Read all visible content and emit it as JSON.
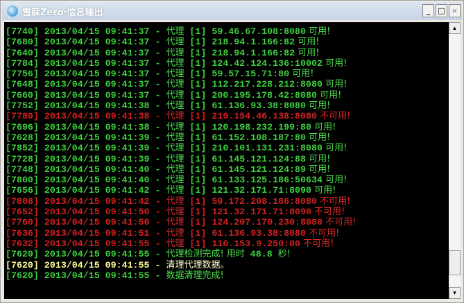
{
  "window": {
    "title": "雪寐Zero·信息输出",
    "minimize": "_",
    "maximize": "□",
    "close": "×"
  },
  "colors": {
    "ok": "#3ed03e",
    "fail": "#d42020",
    "info": "#ffff99",
    "background": "#000000"
  },
  "scrollbar": {
    "up": "▲",
    "down": "▼",
    "position": 1.0
  },
  "rows": [
    {
      "type": "ok",
      "pid": "[7740]",
      "datetime": "2013/04/15 09:41:37",
      "sep": " - ",
      "label": "代理",
      "tag": " [1] ",
      "addr": "59.46.67.108:8080",
      "status": " 可用!"
    },
    {
      "type": "ok",
      "pid": "[7680]",
      "datetime": "2013/04/15 09:41:37",
      "sep": " - ",
      "label": "代理",
      "tag": " [1] ",
      "addr": "218.94.1.166:82",
      "status": " 可用!"
    },
    {
      "type": "ok",
      "pid": "[7640]",
      "datetime": "2013/04/15 09:41:37",
      "sep": " - ",
      "label": "代理",
      "tag": " [1] ",
      "addr": "218.94.1.166:82",
      "status": " 可用!"
    },
    {
      "type": "ok",
      "pid": "[7784]",
      "datetime": "2013/04/15 09:41:37",
      "sep": " - ",
      "label": "代理",
      "tag": " [1] ",
      "addr": "124.42.124.136:10002",
      "status": " 可用!"
    },
    {
      "type": "ok",
      "pid": "[7756]",
      "datetime": "2013/04/15 09:41:37",
      "sep": " - ",
      "label": "代理",
      "tag": " [1] ",
      "addr": "59.57.15.71:80",
      "status": " 可用!"
    },
    {
      "type": "ok",
      "pid": "[7648]",
      "datetime": "2013/04/15 09:41:37",
      "sep": " - ",
      "label": "代理",
      "tag": " [1] ",
      "addr": "112.217.228.212:8080",
      "status": " 可用!"
    },
    {
      "type": "ok",
      "pid": "[7660]",
      "datetime": "2013/04/15 09:41:37",
      "sep": " - ",
      "label": "代理",
      "tag": " [1] ",
      "addr": "200.195.178.42:8080",
      "status": " 可用!"
    },
    {
      "type": "ok",
      "pid": "[7752]",
      "datetime": "2013/04/15 09:41:38",
      "sep": " - ",
      "label": "代理",
      "tag": " [1] ",
      "addr": "61.136.93.38:8080",
      "status": " 可用!"
    },
    {
      "type": "fail",
      "pid": "[7780]",
      "datetime": "2013/04/15 09:41:38",
      "sep": " - ",
      "label": "代理",
      "tag": " [1] ",
      "addr": "219.154.46.138:8080",
      "status": " 不可用!"
    },
    {
      "type": "ok",
      "pid": "[7696]",
      "datetime": "2013/04/15 09:41:38",
      "sep": " - ",
      "label": "代理",
      "tag": " [1] ",
      "addr": "120.198.232.199:80",
      "status": " 可用!"
    },
    {
      "type": "ok",
      "pid": "[7628]",
      "datetime": "2013/04/15 09:41:39",
      "sep": " - ",
      "label": "代理",
      "tag": " [1] ",
      "addr": "61.152.108.187:80",
      "status": " 可用!"
    },
    {
      "type": "ok",
      "pid": "[7852]",
      "datetime": "2013/04/15 09:41:39",
      "sep": " - ",
      "label": "代理",
      "tag": " [1] ",
      "addr": "210.101.131.231:8080",
      "status": " 可用!"
    },
    {
      "type": "ok",
      "pid": "[7728]",
      "datetime": "2013/04/15 09:41:39",
      "sep": " - ",
      "label": "代理",
      "tag": " [1] ",
      "addr": "61.145.121.124:88",
      "status": " 可用!"
    },
    {
      "type": "ok",
      "pid": "[7748]",
      "datetime": "2013/04/15 09:41:40",
      "sep": " - ",
      "label": "代理",
      "tag": " [1] ",
      "addr": "61.145.121.124:89",
      "status": " 可用!"
    },
    {
      "type": "ok",
      "pid": "[7800]",
      "datetime": "2013/04/15 09:41:40",
      "sep": " - ",
      "label": "代理",
      "tag": " [1] ",
      "addr": "61.133.125.186:50634",
      "status": " 可用!"
    },
    {
      "type": "ok",
      "pid": "[7656]",
      "datetime": "2013/04/15 09:41:42",
      "sep": " - ",
      "label": "代理",
      "tag": " [1] ",
      "addr": "121.32.171.71:8090",
      "status": " 可用!"
    },
    {
      "type": "fail",
      "pid": "[7808]",
      "datetime": "2013/04/15 09:41:42",
      "sep": " - ",
      "label": "代理",
      "tag": " [1] ",
      "addr": "59.172.208.186:8080",
      "status": " 不可用!"
    },
    {
      "type": "fail",
      "pid": "[7652]",
      "datetime": "2013/04/15 09:41:50",
      "sep": " - ",
      "label": "代理",
      "tag": " [1] ",
      "addr": "121.32.171.71:8090",
      "status": " 不可用!"
    },
    {
      "type": "fail",
      "pid": "[7760]",
      "datetime": "2013/04/15 09:41:50",
      "sep": " - ",
      "label": "代理",
      "tag": " [1] ",
      "addr": "124.207.170.230:8080",
      "status": " 不可用!"
    },
    {
      "type": "fail",
      "pid": "[7636]",
      "datetime": "2013/04/15 09:41:51",
      "sep": " - ",
      "label": "代理",
      "tag": " [1] ",
      "addr": "61.136.93.38:8080",
      "status": " 不可用!"
    },
    {
      "type": "fail",
      "pid": "[7632]",
      "datetime": "2013/04/15 09:41:55",
      "sep": " - ",
      "label": "代理",
      "tag": " [1] ",
      "addr": "110.153.9.250:80",
      "status": " 不可用!"
    },
    {
      "type": "ok",
      "pid": "[7620]",
      "datetime": "2013/04/15 09:41:55",
      "sep": " - ",
      "label": "代理检测完成! 用时",
      "tag": " 48.8 ",
      "addr": "",
      "status": "秒!"
    },
    {
      "type": "info",
      "pid": "[7620]",
      "datetime": "2013/04/15 09:41:55",
      "sep": " - ",
      "label": "清理代理数据。",
      "tag": "",
      "addr": "",
      "status": ""
    },
    {
      "type": "ok",
      "pid": "[7620]",
      "datetime": "2013/04/15 09:41:55",
      "sep": " - ",
      "label": "数据清理完成!",
      "tag": "",
      "addr": "",
      "status": ""
    }
  ]
}
